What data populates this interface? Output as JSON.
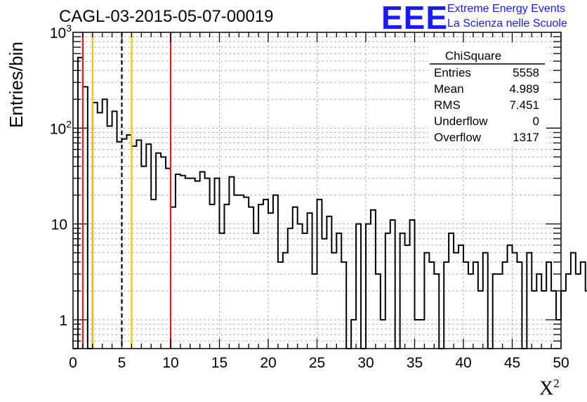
{
  "title": "CAGL-03-2015-05-07-00019",
  "logo": {
    "mark": "EEE",
    "line1": "Extreme Energy Events",
    "line2": "La Scienza nelle Scuole",
    "color": "#1a1aff"
  },
  "stats_box": {
    "name": "ChiSquare",
    "rows": [
      {
        "label": "Entries",
        "value": "5558"
      },
      {
        "label": "Mean",
        "value": "4.989"
      },
      {
        "label": "RMS",
        "value": "7.451"
      },
      {
        "label": "Underflow",
        "value": "0"
      },
      {
        "label": "Overflow",
        "value": "1317"
      }
    ]
  },
  "chart_data": {
    "type": "histogram",
    "y_scale": "log",
    "xlabel": "X",
    "xlabel_superscript": "2",
    "ylabel": "Entries/bin",
    "xlim": [
      0,
      50
    ],
    "ylim": [
      0.5,
      1000
    ],
    "bin_width": 0.5,
    "x_ticks": [
      0,
      5,
      10,
      15,
      20,
      25,
      30,
      35,
      40,
      45,
      50
    ],
    "x_tick_labels": [
      "0",
      "5",
      "10",
      "15",
      "20",
      "25",
      "30",
      "35",
      "40",
      "45",
      "50"
    ],
    "y_ticks": [
      1,
      10,
      100,
      1000
    ],
    "y_tick_labels": [
      "1",
      "10",
      "10^2",
      "10^3"
    ],
    "grid": true,
    "counts": [
      0,
      545,
      270,
      0,
      185,
      145,
      200,
      105,
      150,
      72,
      77,
      85,
      65,
      75,
      40,
      68,
      18,
      55,
      50,
      38,
      15,
      33,
      32,
      30,
      30,
      28,
      35,
      30,
      16,
      30,
      8,
      16,
      31,
      20,
      20,
      19,
      15,
      8,
      16,
      18,
      13,
      20,
      4,
      5,
      9,
      15,
      10,
      8,
      13,
      3,
      18,
      7,
      12,
      5,
      8,
      4,
      0,
      1,
      10,
      0,
      10,
      14,
      3,
      1,
      8,
      11,
      0,
      8,
      6,
      11,
      1,
      1,
      5,
      4,
      3,
      0,
      4,
      8,
      5,
      6,
      4,
      3,
      4,
      2,
      5,
      0,
      3,
      3,
      4,
      6,
      5,
      4,
      0,
      5,
      2,
      3,
      2,
      4,
      2,
      1,
      2,
      3,
      5,
      3,
      4,
      2,
      1,
      1,
      1,
      2,
      5,
      2,
      3,
      3,
      1,
      5,
      1,
      3,
      2,
      2,
      1,
      2,
      1,
      2,
      1,
      2,
      1,
      5,
      2,
      2,
      1,
      1,
      3,
      1,
      1,
      1,
      2,
      2,
      1,
      2,
      1,
      0,
      1,
      3,
      2,
      1,
      0,
      1,
      0,
      1,
      0
    ],
    "vertical_lines": [
      {
        "x": 1,
        "color": "#e02020",
        "style": "solid"
      },
      {
        "x": 2,
        "color": "#f2c300",
        "style": "solid"
      },
      {
        "x": 5,
        "color": "#000000",
        "style": "dashed"
      },
      {
        "x": 6,
        "color": "#f2c300",
        "style": "solid"
      },
      {
        "x": 10,
        "color": "#e02020",
        "style": "solid"
      }
    ]
  }
}
